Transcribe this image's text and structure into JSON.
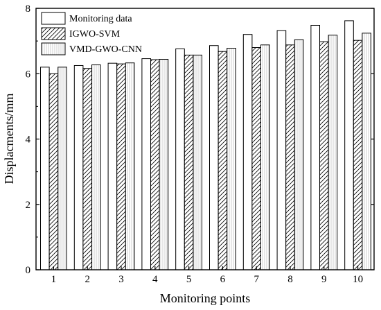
{
  "chart_data": {
    "type": "bar",
    "xlabel": "Monitoring points",
    "ylabel": "Displacments/mm",
    "ylim": [
      0,
      8
    ],
    "yticks": [
      0,
      2,
      4,
      6,
      8
    ],
    "categories": [
      "1",
      "2",
      "3",
      "4",
      "5",
      "6",
      "7",
      "8",
      "9",
      "10"
    ],
    "legend_position": "top-left",
    "grid": false,
    "series": [
      {
        "name": "Monitoring data",
        "pattern": "solid-white",
        "values": [
          6.2,
          6.25,
          6.32,
          6.46,
          6.76,
          6.86,
          7.2,
          7.32,
          7.48,
          7.62
        ]
      },
      {
        "name": "IGWO-SVM",
        "pattern": "diagonal-hatch",
        "values": [
          6.0,
          6.16,
          6.3,
          6.43,
          6.57,
          6.68,
          6.8,
          6.88,
          6.98,
          7.02
        ]
      },
      {
        "name": "VMD-GWO-CNN",
        "pattern": "light-vertical-lines",
        "values": [
          6.2,
          6.27,
          6.33,
          6.44,
          6.57,
          6.78,
          6.88,
          7.04,
          7.18,
          7.24
        ]
      }
    ]
  }
}
